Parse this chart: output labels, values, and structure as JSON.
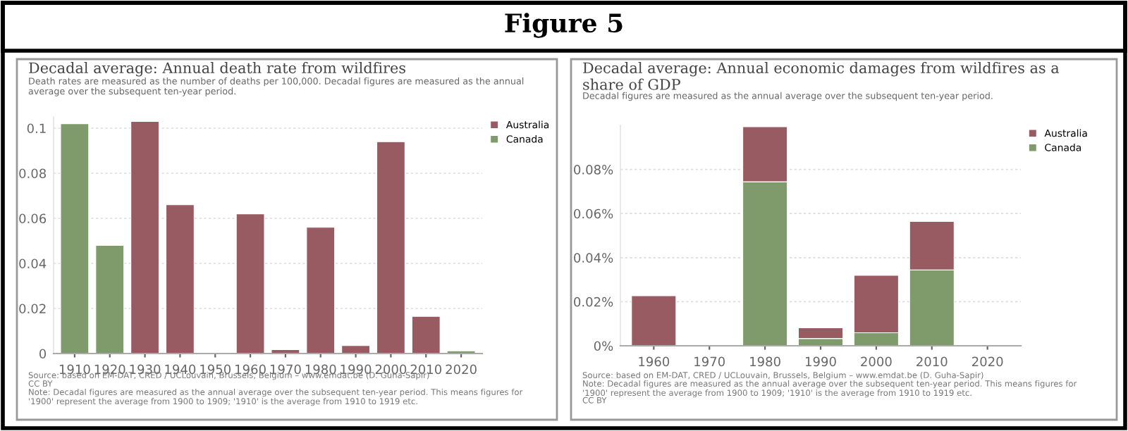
{
  "chart_data": [
    {
      "type": "bar",
      "title": "Decadal average: Annual death rate from wildfires",
      "subtitle": "Death rates are measured as the number of deaths per 100,000. Decadal figures are measured as the annual average over the subsequent ten-year period.",
      "categories": [
        "1910",
        "1920",
        "1930",
        "1940",
        "1950",
        "1960",
        "1970",
        "1980",
        "1990",
        "2000",
        "2010",
        "2020"
      ],
      "series": [
        {
          "name": "Canada",
          "color": "#7f9a6b",
          "values": [
            0.102,
            0.048,
            null,
            null,
            null,
            null,
            null,
            null,
            null,
            null,
            null,
            0.0012
          ]
        },
        {
          "name": "Australia",
          "color": "#985b61",
          "values": [
            null,
            null,
            0.103,
            0.066,
            null,
            0.062,
            0.0017,
            0.056,
            0.0035,
            0.094,
            0.0165,
            null
          ]
        }
      ],
      "stacked": true,
      "ylim": [
        0,
        0.105
      ],
      "yticks": [
        0,
        0.02,
        0.04,
        0.06,
        0.08,
        0.1
      ],
      "grid": "y",
      "legend": "top right",
      "annotations": [
        "Figure 5",
        "Source: based on EM-DAT, CRED / UCLouvain, Brussels, Belgium – www.emdat.be (D. Guha-Sapir)",
        "CC BY",
        "Note: Decadal figures are measured as the annual average over the subsequent ten-year period. This means figures for '1900' represent the average from 1900 to 1909; '1910' is the average from 1910 to 1919 etc."
      ]
    },
    {
      "type": "bar",
      "title": "Decadal average: Annual economic damages from wildfires as a share of GDP",
      "subtitle": "Decadal figures are measured as the annual average over the subsequent ten-year period.",
      "categories": [
        "1960",
        "1970",
        "1980",
        "1990",
        "2000",
        "2010",
        "2020"
      ],
      "series": [
        {
          "name": "Canada",
          "color": "#7f9a6b",
          "values": [
            null,
            null,
            0.0744,
            0.0033,
            0.0059,
            0.0344,
            null
          ]
        },
        {
          "name": "Australia",
          "color": "#985b61",
          "values": [
            0.0227,
            0.0003,
            0.025,
            0.0049,
            0.0261,
            0.022,
            null
          ]
        }
      ],
      "stacked": true,
      "ylim": [
        0,
        0.1
      ],
      "yticks": [
        {
          "value": 0,
          "label": "0%"
        },
        {
          "value": 0.02,
          "label": "0.02%"
        },
        {
          "value": 0.04,
          "label": "0.04%"
        },
        {
          "value": 0.06,
          "label": "0.06%"
        },
        {
          "value": 0.08,
          "label": "0.08%"
        }
      ],
      "grid": "y",
      "legend": "top right",
      "annotations": [
        "Source: based on EM-DAT, CRED / UCLouvain, Brussels, Belgium – www.emdat.be (D. Guha-Sapir)",
        "Note: Decadal figures are measured as the annual average over the subsequent ten-year period. This means figures for '1900' represent the average from 1900 to 1909; '1910' is the average from 1910 to 1919 etc.",
        "CC BY"
      ]
    }
  ]
}
